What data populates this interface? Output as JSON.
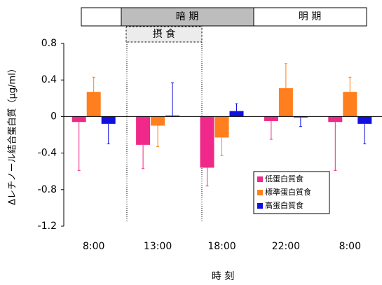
{
  "chart_data": {
    "type": "bar",
    "y_label": "Δレチノール結合蛋白質（μg/ml）",
    "x_label": "時 刻",
    "period_labels": [
      "暗 期",
      "明 期"
    ],
    "feeding_label": "摂 食",
    "categories": [
      "8:00",
      "13:00",
      "18:00",
      "22:00",
      "8:00"
    ],
    "series": [
      {
        "name": "低蛋白質食",
        "color": "#f0288a",
        "values": [
          -0.06,
          -0.31,
          -0.56,
          -0.05,
          -0.06
        ],
        "errors": [
          0.53,
          0.26,
          0.2,
          0.2,
          0.53
        ]
      },
      {
        "name": "標準蛋白質食",
        "color": "#ff7f1e",
        "values": [
          0.27,
          -0.1,
          -0.23,
          0.31,
          0.27
        ],
        "errors": [
          0.16,
          0.23,
          0.2,
          0.27,
          0.16
        ]
      },
      {
        "name": "高蛋白質食",
        "color": "#1010e0",
        "values": [
          -0.08,
          0.01,
          0.06,
          -0.01,
          -0.08
        ],
        "errors": [
          0.22,
          0.36,
          0.08,
          0.1,
          0.22
        ]
      }
    ],
    "ylim": [
      -1.2,
      0.8
    ],
    "yticks": [
      -1.2,
      -0.8,
      -0.4,
      0,
      0.4,
      0.8
    ]
  }
}
